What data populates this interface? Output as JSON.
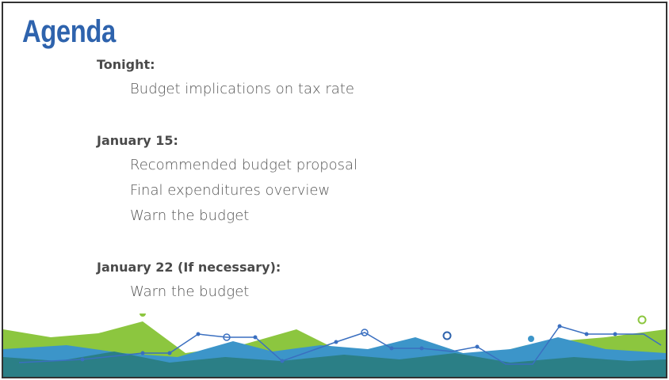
{
  "slide": {
    "title": "Agenda",
    "sections": [
      {
        "heading": "Tonight:",
        "items": [
          "Budget implications on tax rate"
        ]
      },
      {
        "heading": "January 15:",
        "items": [
          "Recommended budget proposal",
          "Final expenditures overview",
          "Warn the budget"
        ]
      },
      {
        "heading": "January 22 (If necessary):",
        "items": [
          "Warn the budget"
        ]
      }
    ]
  }
}
